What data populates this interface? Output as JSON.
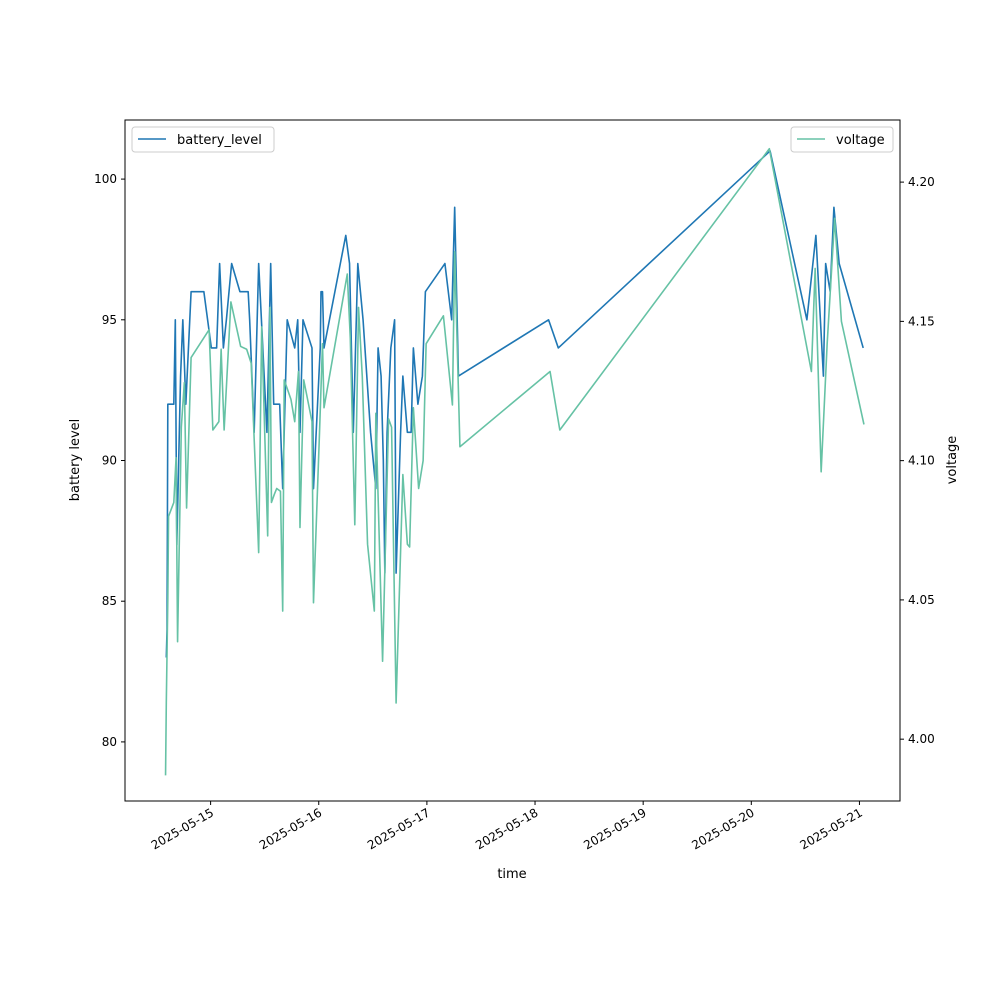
{
  "chart_data": {
    "type": "line",
    "xlabel": "time",
    "ylabel": "battery level",
    "y2label": "voltage",
    "x_ticks": [
      "2025-05-15",
      "2025-05-16",
      "2025-05-17",
      "2025-05-18",
      "2025-05-19",
      "2025-05-20",
      "2025-05-21"
    ],
    "y_ticks": [
      80,
      85,
      90,
      95,
      100
    ],
    "y2_ticks": [
      4.0,
      4.05,
      4.1,
      4.15,
      4.2
    ],
    "xlim": [
      "2025-05-14 05:00",
      "2025-05-21 09:00"
    ],
    "ylim": [
      77.9,
      102.1
    ],
    "y2lim": [
      3.9778,
      4.2223
    ],
    "legend_left": "top-left",
    "legend_right": "top-right",
    "series": [
      {
        "name": "battery_level",
        "axis": "left",
        "color": "#1f77b4",
        "points": [
          [
            "2025-05-14 14:10",
            83
          ],
          [
            "2025-05-14 14:20",
            84
          ],
          [
            "2025-05-14 14:30",
            92
          ],
          [
            "2025-05-14 15:50",
            92
          ],
          [
            "2025-05-14 16:10",
            95
          ],
          [
            "2025-05-14 16:30",
            87
          ],
          [
            "2025-05-14 17:20",
            93
          ],
          [
            "2025-05-14 17:50",
            95
          ],
          [
            "2025-05-14 18:30",
            92
          ],
          [
            "2025-05-14 19:40",
            96
          ],
          [
            "2025-05-14 22:30",
            96
          ],
          [
            "2025-05-15 00:10",
            94
          ],
          [
            "2025-05-15 01:20",
            94
          ],
          [
            "2025-05-15 02:00",
            97
          ],
          [
            "2025-05-15 02:50",
            94
          ],
          [
            "2025-05-15 03:30",
            95
          ],
          [
            "2025-05-15 04:40",
            97
          ],
          [
            "2025-05-15 06:30",
            96
          ],
          [
            "2025-05-15 08:20",
            96
          ],
          [
            "2025-05-15 08:40",
            95
          ],
          [
            "2025-05-15 09:40",
            91
          ],
          [
            "2025-05-15 10:40",
            97
          ],
          [
            "2025-05-15 12:30",
            91
          ],
          [
            "2025-05-15 13:20",
            97
          ],
          [
            "2025-05-15 14:00",
            92
          ],
          [
            "2025-05-15 15:20",
            92
          ],
          [
            "2025-05-15 16:00",
            89
          ],
          [
            "2025-05-15 17:00",
            95
          ],
          [
            "2025-05-15 18:40",
            94
          ],
          [
            "2025-05-15 19:20",
            95
          ],
          [
            "2025-05-15 19:50",
            91
          ],
          [
            "2025-05-15 20:30",
            95
          ],
          [
            "2025-05-15 22:30",
            94
          ],
          [
            "2025-05-15 22:50",
            89
          ],
          [
            "2025-05-16 00:20",
            94
          ],
          [
            "2025-05-16 00:30",
            96
          ],
          [
            "2025-05-16 00:50",
            96
          ],
          [
            "2025-05-16 01:10",
            94
          ],
          [
            "2025-05-16 06:00",
            98
          ],
          [
            "2025-05-16 06:50",
            97
          ],
          [
            "2025-05-16 07:40",
            91
          ],
          [
            "2025-05-16 08:40",
            97
          ],
          [
            "2025-05-16 09:50",
            95
          ],
          [
            "2025-05-16 11:30",
            91
          ],
          [
            "2025-05-16 12:40",
            89
          ],
          [
            "2025-05-16 13:10",
            94
          ],
          [
            "2025-05-16 13:50",
            93
          ],
          [
            "2025-05-16 14:20",
            90
          ],
          [
            "2025-05-16 14:40",
            86
          ],
          [
            "2025-05-16 15:10",
            91
          ],
          [
            "2025-05-16 16:00",
            94
          ],
          [
            "2025-05-16 16:50",
            95
          ],
          [
            "2025-05-16 17:10",
            86
          ],
          [
            "2025-05-16 18:10",
            91
          ],
          [
            "2025-05-16 18:40",
            93
          ],
          [
            "2025-05-16 19:40",
            91
          ],
          [
            "2025-05-16 20:30",
            91
          ],
          [
            "2025-05-16 21:00",
            94
          ],
          [
            "2025-05-16 22:00",
            92
          ],
          [
            "2025-05-16 23:00",
            93
          ],
          [
            "2025-05-16 23:40",
            96
          ],
          [
            "2025-05-17 04:00",
            97
          ],
          [
            "2025-05-17 05:30",
            95
          ],
          [
            "2025-05-17 06:10",
            99
          ],
          [
            "2025-05-17 07:00",
            93
          ],
          [
            "2025-05-18 03:00",
            95
          ],
          [
            "2025-05-18 05:10",
            94
          ],
          [
            "2025-05-20 04:10",
            101
          ],
          [
            "2025-05-20 12:20",
            95
          ],
          [
            "2025-05-20 14:20",
            98
          ],
          [
            "2025-05-20 16:00",
            93
          ],
          [
            "2025-05-20 16:30",
            97
          ],
          [
            "2025-05-20 17:30",
            96
          ],
          [
            "2025-05-20 18:20",
            99
          ],
          [
            "2025-05-20 19:30",
            97
          ],
          [
            "2025-05-21 00:50",
            94
          ]
        ]
      },
      {
        "name": "voltage",
        "axis": "right",
        "color": "#66c2a5",
        "points": [
          [
            "2025-05-14 14:00",
            3.987
          ],
          [
            "2025-05-14 14:10",
            4.013
          ],
          [
            "2025-05-14 14:30",
            4.05
          ],
          [
            "2025-05-14 14:40",
            4.08
          ],
          [
            "2025-05-14 15:50",
            4.085
          ],
          [
            "2025-05-14 16:20",
            4.101
          ],
          [
            "2025-05-14 16:40",
            4.035
          ],
          [
            "2025-05-14 17:30",
            4.112
          ],
          [
            "2025-05-14 18:10",
            4.128
          ],
          [
            "2025-05-14 18:40",
            4.083
          ],
          [
            "2025-05-14 19:40",
            4.137
          ],
          [
            "2025-05-14 23:40",
            4.147
          ],
          [
            "2025-05-15 00:30",
            4.111
          ],
          [
            "2025-05-15 01:50",
            4.114
          ],
          [
            "2025-05-15 02:20",
            4.14
          ],
          [
            "2025-05-15 03:00",
            4.111
          ],
          [
            "2025-05-15 04:30",
            4.157
          ],
          [
            "2025-05-15 06:40",
            4.141
          ],
          [
            "2025-05-15 08:00",
            4.14
          ],
          [
            "2025-05-15 09:00",
            4.135
          ],
          [
            "2025-05-15 10:40",
            4.067
          ],
          [
            "2025-05-15 11:20",
            4.148
          ],
          [
            "2025-05-15 12:40",
            4.073
          ],
          [
            "2025-05-15 13:10",
            4.155
          ],
          [
            "2025-05-15 13:30",
            4.085
          ],
          [
            "2025-05-15 14:10",
            4.088
          ],
          [
            "2025-05-15 14:40",
            4.09
          ],
          [
            "2025-05-15 15:30",
            4.089
          ],
          [
            "2025-05-15 16:00",
            4.046
          ],
          [
            "2025-05-15 16:20",
            4.129
          ],
          [
            "2025-05-15 17:50",
            4.122
          ],
          [
            "2025-05-15 18:40",
            4.114
          ],
          [
            "2025-05-15 19:30",
            4.132
          ],
          [
            "2025-05-15 19:50",
            4.076
          ],
          [
            "2025-05-15 20:40",
            4.129
          ],
          [
            "2025-05-15 22:30",
            4.114
          ],
          [
            "2025-05-15 22:50",
            4.049
          ],
          [
            "2025-05-16 00:10",
            4.11
          ],
          [
            "2025-05-16 00:50",
            4.142
          ],
          [
            "2025-05-16 01:10",
            4.119
          ],
          [
            "2025-05-16 06:20",
            4.167
          ],
          [
            "2025-05-16 07:00",
            4.144
          ],
          [
            "2025-05-16 08:00",
            4.077
          ],
          [
            "2025-05-16 08:50",
            4.155
          ],
          [
            "2025-05-16 09:40",
            4.13
          ],
          [
            "2025-05-16 10:50",
            4.07
          ],
          [
            "2025-05-16 12:20",
            4.046
          ],
          [
            "2025-05-16 12:40",
            4.117
          ],
          [
            "2025-05-16 14:10",
            4.028
          ],
          [
            "2025-05-16 15:30",
            4.115
          ],
          [
            "2025-05-16 16:10",
            4.112
          ],
          [
            "2025-05-16 17:10",
            4.013
          ],
          [
            "2025-05-16 18:40",
            4.095
          ],
          [
            "2025-05-16 19:40",
            4.07
          ],
          [
            "2025-05-16 20:10",
            4.069
          ],
          [
            "2025-05-16 21:00",
            4.119
          ],
          [
            "2025-05-16 22:10",
            4.09
          ],
          [
            "2025-05-16 23:10",
            4.1
          ],
          [
            "2025-05-16 23:50",
            4.142
          ],
          [
            "2025-05-17 03:40",
            4.152
          ],
          [
            "2025-05-17 05:40",
            4.12
          ],
          [
            "2025-05-17 06:10",
            4.175
          ],
          [
            "2025-05-17 07:20",
            4.105
          ],
          [
            "2025-05-18 03:20",
            4.132
          ],
          [
            "2025-05-18 05:30",
            4.111
          ],
          [
            "2025-05-20 04:00",
            4.212
          ],
          [
            "2025-05-20 13:20",
            4.132
          ],
          [
            "2025-05-20 14:10",
            4.169
          ],
          [
            "2025-05-20 15:30",
            4.096
          ],
          [
            "2025-05-20 16:50",
            4.142
          ],
          [
            "2025-05-20 18:30",
            4.187
          ],
          [
            "2025-05-20 20:00",
            4.15
          ],
          [
            "2025-05-21 01:00",
            4.113
          ]
        ]
      }
    ]
  }
}
